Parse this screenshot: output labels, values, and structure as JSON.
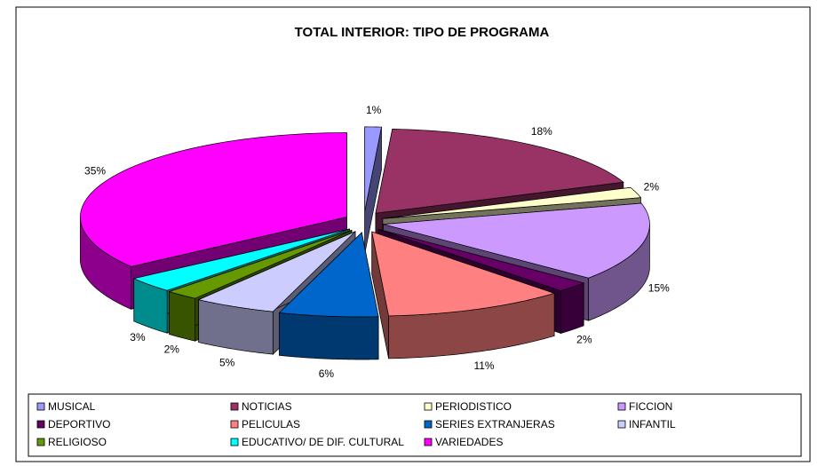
{
  "chart_data": {
    "type": "pie3d",
    "title": "TOTAL INTERIOR: TIPO DE PROGRAMA",
    "categories": [
      "MUSICAL",
      "NOTICIAS",
      "PERIODISTICO",
      "FICCION",
      "DEPORTIVO",
      "PELICULAS",
      "SERIES EXTRANJERAS",
      "INFANTIL",
      "RELIGIOSO",
      "EDUCATIVO/ DE DIF. CULTURAL",
      "VARIEDADES"
    ],
    "values": [
      1,
      18,
      2,
      15,
      2,
      11,
      6,
      5,
      2,
      3,
      35
    ],
    "value_labels": [
      "1%",
      "18%",
      "2%",
      "15%",
      "2%",
      "11%",
      "6%",
      "5%",
      "2%",
      "3%",
      "35%"
    ],
    "colors": [
      "#9999ff",
      "#993366",
      "#ffffcc",
      "#cc99ff",
      "#660066",
      "#ff8080",
      "#0066cc",
      "#ccccff",
      "#669900",
      "#00ffff",
      "#ff00ff"
    ],
    "legend": "bottom"
  }
}
